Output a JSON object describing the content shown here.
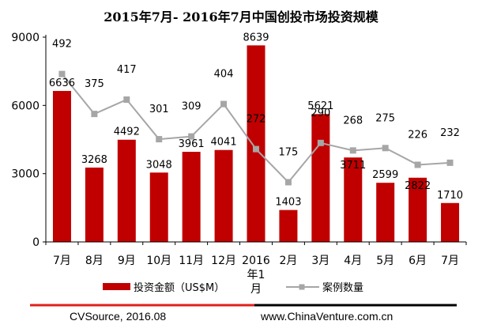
{
  "chart_data": {
    "type": "bar",
    "title": "2015年7月- 2016年7月中国创投市场投资规模",
    "categories": [
      "7月",
      "8月",
      "9月",
      "10月",
      "11月",
      "12月",
      "2016年1月",
      "2月",
      "3月",
      "4月",
      "5月",
      "6月",
      "7月"
    ],
    "ylim": [
      0,
      9000
    ],
    "yticks": [
      0,
      3000,
      6000,
      9000
    ],
    "y2lim": [
      0,
      600
    ],
    "grid": false,
    "legend_position": "bottom",
    "series": [
      {
        "name": "投资金额（US$M）",
        "type": "bar",
        "axis": "left",
        "color": "#c00000",
        "values": [
          6636,
          3268,
          4492,
          3048,
          3961,
          4041,
          8639,
          1403,
          5621,
          3711,
          2599,
          2822,
          1710
        ]
      },
      {
        "name": "案例数量",
        "type": "line",
        "axis": "right",
        "color": "#a6a6a6",
        "values": [
          492,
          375,
          417,
          301,
          309,
          404,
          272,
          175,
          290,
          268,
          275,
          226,
          232
        ]
      }
    ]
  },
  "footer": {
    "source": "CVSource, 2016.08",
    "website": "www.ChinaVenture.com.cn"
  }
}
